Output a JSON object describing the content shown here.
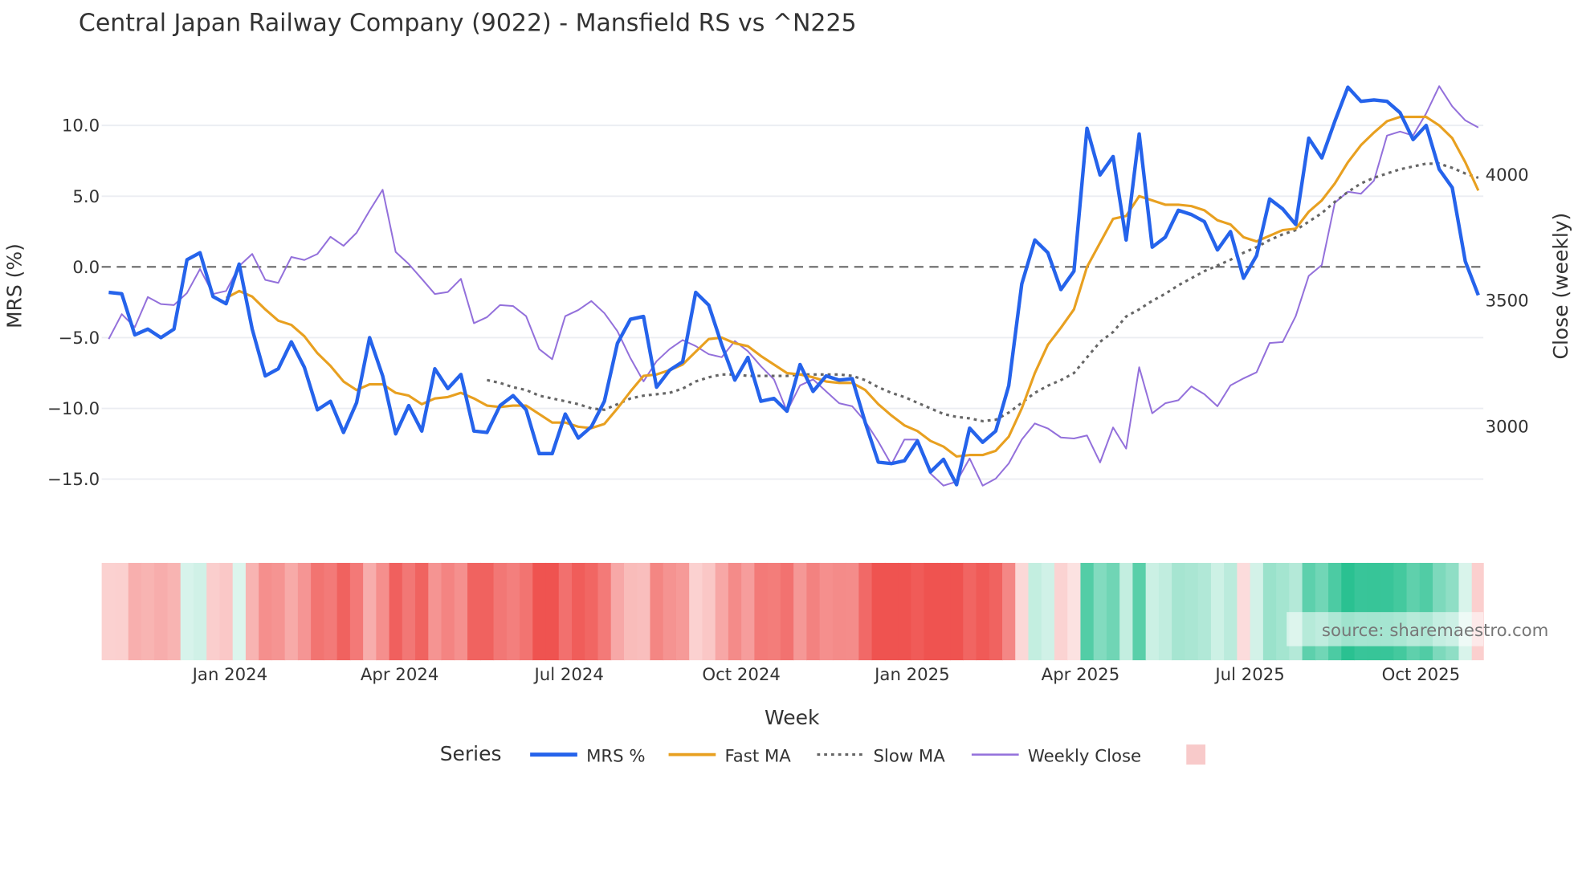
{
  "chart_data": {
    "type": "line",
    "title": "Central Japan Railway Company (9022) - Mansfield RS vs ^N225",
    "xlabel": "Week",
    "ylabel": "MRS (%)",
    "y2label": "Close (weekly)",
    "ylim": [
      -17.5,
      14.5
    ],
    "y2lim": [
      2750,
      4400
    ],
    "yticks": [
      "10.0",
      "5.0",
      "0.0",
      "−5.0",
      "−10.0",
      "−15.0"
    ],
    "ytick_values": [
      10,
      5,
      0,
      -5,
      -10,
      -15
    ],
    "y2ticks": [
      "4000",
      "3500",
      "3000"
    ],
    "y2tick_values": [
      4000,
      3500,
      3000
    ],
    "xticks": [
      "Jan 2024",
      "Apr 2024",
      "Jul 2024",
      "Oct 2024",
      "Jan 2025",
      "Apr 2025",
      "Jul 2025",
      "Oct 2025"
    ],
    "xtick_week_index": [
      9.3,
      22.3,
      35.3,
      48.5,
      61.6,
      74.5,
      87.5,
      100.6
    ],
    "week_count": 106,
    "zero_line": 0,
    "legend_title": "Series",
    "legend_position": "bottom",
    "source": "source: sharemaestro.com",
    "colors": {
      "mrs": "#2563eb",
      "fast": "#e8a020",
      "slow": "#666666",
      "close": "#9370db",
      "neg": "#ef5350",
      "pos": "#26c08f"
    },
    "series": [
      {
        "name": "MRS %",
        "axis": "left",
        "values": [
          -1.8,
          -1.9,
          -4.8,
          -4.4,
          -5.0,
          -4.4,
          0.5,
          1.0,
          -2.1,
          -2.6,
          0.2,
          -4.4,
          -7.7,
          -7.2,
          -5.3,
          -7.1,
          -10.1,
          -9.5,
          -11.7,
          -9.6,
          -5.0,
          -7.7,
          -11.8,
          -9.8,
          -11.6,
          -7.2,
          -8.6,
          -7.6,
          -11.6,
          -11.7,
          -9.8,
          -9.1,
          -10.1,
          -13.2,
          -13.2,
          -10.4,
          -12.1,
          -11.3,
          -9.5,
          -5.4,
          -3.7,
          -3.5,
          -8.5,
          -7.3,
          -6.7,
          -1.8,
          -2.7,
          -5.5,
          -8.0,
          -6.4,
          -9.5,
          -9.3,
          -10.2,
          -6.9,
          -8.8,
          -7.7,
          -8.0,
          -7.9,
          -11.0,
          -13.8,
          -13.9,
          -13.7,
          -12.3,
          -14.5,
          -13.6,
          -15.4,
          -11.4,
          -12.4,
          -11.6,
          -8.4,
          -1.2,
          1.9,
          1.0,
          -1.6,
          -0.3,
          9.8,
          6.5,
          7.8,
          1.9,
          9.4,
          1.4,
          2.1,
          4.0,
          3.7,
          3.2,
          1.2,
          2.5,
          -0.8,
          0.8,
          4.8,
          4.1,
          3.0,
          9.1,
          7.7,
          10.3,
          12.7,
          11.7,
          11.8,
          11.7,
          10.9,
          9.0,
          10.0,
          6.9,
          5.6,
          0.4,
          -2.0
        ]
      },
      {
        "name": "Fast MA",
        "axis": "left",
        "values": [
          null,
          null,
          null,
          null,
          null,
          null,
          null,
          null,
          null,
          -2.2,
          -1.7,
          -2.1,
          -3.0,
          -3.8,
          -4.1,
          -4.9,
          -6.1,
          -7.0,
          -8.1,
          -8.7,
          -8.3,
          -8.3,
          -8.9,
          -9.1,
          -9.7,
          -9.3,
          -9.2,
          -8.9,
          -9.3,
          -9.8,
          -9.9,
          -9.8,
          -9.8,
          -10.4,
          -11.0,
          -11.0,
          -11.3,
          -11.4,
          -11.1,
          -10.0,
          -8.8,
          -7.7,
          -7.6,
          -7.3,
          -6.9,
          -6.0,
          -5.1,
          -5.0,
          -5.4,
          -5.6,
          -6.3,
          -6.9,
          -7.5,
          -7.6,
          -7.8,
          -8.1,
          -8.2,
          -8.2,
          -8.7,
          -9.7,
          -10.5,
          -11.2,
          -11.6,
          -12.3,
          -12.7,
          -13.4,
          -13.3,
          -13.3,
          -13.0,
          -12.0,
          -10.0,
          -7.5,
          -5.5,
          -4.3,
          -3.0,
          0.0,
          1.7,
          3.4,
          3.6,
          5.0,
          4.7,
          4.4,
          4.4,
          4.3,
          4.0,
          3.3,
          3.0,
          2.1,
          1.8,
          2.2,
          2.6,
          2.7,
          3.9,
          4.7,
          5.9,
          7.4,
          8.6,
          9.5,
          10.3,
          10.6,
          10.6,
          10.6,
          10.0,
          9.1,
          7.4,
          5.4
        ]
      },
      {
        "name": "Slow MA",
        "axis": "left",
        "values": [
          null,
          null,
          null,
          null,
          null,
          null,
          null,
          null,
          null,
          null,
          null,
          null,
          null,
          null,
          null,
          null,
          null,
          null,
          null,
          null,
          null,
          null,
          null,
          null,
          null,
          null,
          null,
          null,
          null,
          -8.0,
          -8.2,
          -8.5,
          -8.7,
          -9.1,
          -9.3,
          -9.5,
          -9.7,
          -10.0,
          -10.1,
          -9.7,
          -9.3,
          -9.1,
          -9.0,
          -8.9,
          -8.6,
          -8.1,
          -7.8,
          -7.6,
          -7.6,
          -7.7,
          -7.7,
          -7.7,
          -7.7,
          -7.6,
          -7.6,
          -7.6,
          -7.6,
          -7.7,
          -8.0,
          -8.5,
          -8.9,
          -9.2,
          -9.6,
          -10.0,
          -10.4,
          -10.6,
          -10.7,
          -10.9,
          -10.8,
          -10.3,
          -9.6,
          -8.9,
          -8.4,
          -8.0,
          -7.5,
          -6.4,
          -5.3,
          -4.6,
          -3.5,
          -3.0,
          -2.4,
          -1.9,
          -1.3,
          -0.8,
          -0.3,
          0.1,
          0.5,
          1.0,
          1.4,
          1.9,
          2.3,
          2.6,
          3.2,
          3.8,
          4.6,
          5.3,
          5.9,
          6.3,
          6.6,
          6.9,
          7.1,
          7.3,
          7.3,
          7.0,
          6.6,
          6.3
        ]
      },
      {
        "name": "Weekly Close",
        "axis": "right",
        "values": [
          3347,
          3446,
          3394,
          3514,
          3486,
          3482,
          3530,
          3625,
          3526,
          3538,
          3637,
          3685,
          3582,
          3570,
          3673,
          3661,
          3685,
          3753,
          3717,
          3769,
          3857,
          3940,
          3693,
          3645,
          3586,
          3526,
          3534,
          3586,
          3410,
          3434,
          3482,
          3478,
          3438,
          3307,
          3267,
          3438,
          3462,
          3498,
          3450,
          3378,
          3271,
          3179,
          3259,
          3307,
          3343,
          3319,
          3287,
          3275,
          3339,
          3299,
          3239,
          3187,
          3060,
          3163,
          3187,
          3139,
          3092,
          3080,
          3020,
          2940,
          2849,
          2948,
          2948,
          2813,
          2765,
          2781,
          2873,
          2765,
          2793,
          2853,
          2948,
          3012,
          2992,
          2956,
          2952,
          2964,
          2857,
          2996,
          2912,
          3235,
          3052,
          3092,
          3104,
          3159,
          3128,
          3080,
          3163,
          3191,
          3215,
          3331,
          3335,
          3438,
          3598,
          3641,
          3888,
          3932,
          3924,
          3976,
          4155,
          4171,
          4155,
          4243,
          4351,
          4271,
          4215,
          4187
        ]
      }
    ]
  }
}
